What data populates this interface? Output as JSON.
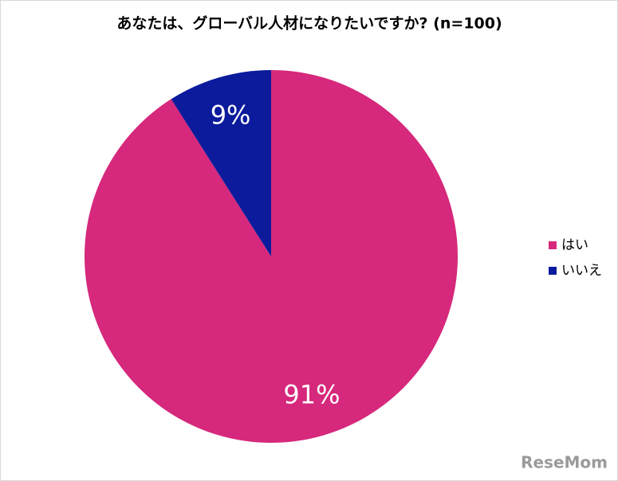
{
  "chart_data": {
    "type": "pie",
    "title": "あなたは、グローバル人材になりたいですか? (n=100)",
    "categories": [
      "はい",
      "いいえ"
    ],
    "values": [
      91,
      9
    ],
    "value_labels": [
      "91%",
      "9%"
    ],
    "colors": [
      "#d6287c",
      "#0b1b9c"
    ],
    "legend": "right",
    "watermark": "ReseMom"
  }
}
